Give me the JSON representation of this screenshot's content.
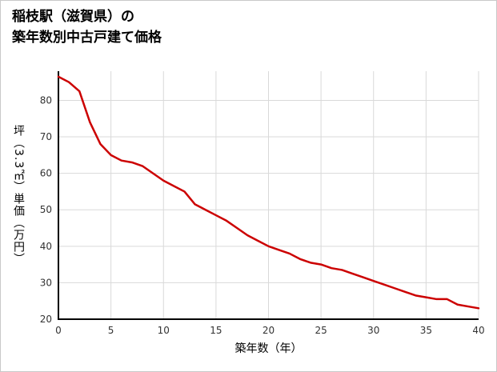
{
  "page": {
    "title_line1": "稲枝駅（滋賀県）の",
    "title_line2": "築年数別中古戸建て価格"
  },
  "chart_data": {
    "type": "line",
    "title": "稲枝駅（滋賀県）の築年数別中古戸建て価格",
    "xlabel": "築年数（年）",
    "ylabel": "坪（3.3㎡）単価（万円）",
    "x": [
      0,
      1,
      2,
      3,
      4,
      5,
      6,
      7,
      8,
      9,
      10,
      11,
      12,
      13,
      14,
      15,
      16,
      17,
      18,
      19,
      20,
      21,
      22,
      23,
      24,
      25,
      26,
      27,
      28,
      29,
      30,
      31,
      32,
      33,
      34,
      35,
      36,
      37,
      38,
      39,
      40
    ],
    "values": [
      86.5,
      85,
      82.5,
      74,
      68,
      65,
      63.5,
      63,
      62,
      60,
      58,
      56.5,
      55,
      51.5,
      50,
      48.5,
      47,
      45,
      43,
      41.5,
      40,
      39,
      38,
      36.5,
      35.5,
      35,
      34,
      33.5,
      32.5,
      31.5,
      30.5,
      29.5,
      28.5,
      27.5,
      26.5,
      26,
      25.5,
      25.5,
      24,
      23.5,
      23
    ],
    "xlim": [
      0,
      40
    ],
    "ylim": [
      20,
      88
    ],
    "xticks": [
      0,
      5,
      10,
      15,
      20,
      25,
      30,
      35,
      40
    ],
    "yticks": [
      20,
      30,
      40,
      50,
      60,
      70,
      80
    ],
    "grid": true,
    "legend": "none",
    "line_color": "#cc0000",
    "grid_color": "#d9d9d9",
    "axis_color": "#000000"
  }
}
